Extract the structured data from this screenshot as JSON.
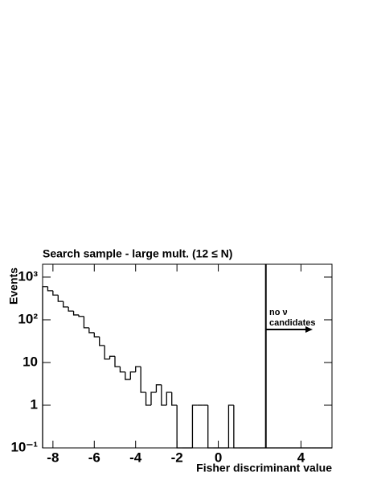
{
  "chart_data": {
    "type": "histogram",
    "title": "Search sample - large mult. (12 ≤ N)",
    "x_label": "Fisher discriminant value",
    "y_label": "Events",
    "bins": [
      -8.5,
      -8.25,
      -8,
      -7.75,
      -7.5,
      -7.25,
      -7,
      -6.75,
      -6.5,
      -6.25,
      -6,
      -5.75,
      -5.5,
      -5.25,
      -5,
      -4.75,
      -4.5,
      -4.25,
      -4,
      -3.75,
      -3.5,
      -3.25,
      -3,
      -2.75,
      -2.5,
      -2.25,
      -2,
      -1.75,
      -1.5,
      -1.25,
      -1,
      -0.75,
      -0.5,
      -0.25,
      0,
      0.25,
      0.5,
      0.75,
      1,
      1.25,
      1.5,
      1.75,
      2,
      2.25,
      2.5,
      2.75,
      3,
      3.25,
      3.5,
      3.75,
      4,
      4.25,
      4.5,
      4.75,
      5,
      5.25,
      5.5
    ],
    "values": [
      600,
      480,
      380,
      270,
      200,
      160,
      130,
      120,
      65,
      50,
      40,
      25,
      12,
      14,
      8,
      6,
      4,
      6,
      8,
      2,
      1,
      2,
      3,
      1,
      2,
      1,
      0,
      0,
      0,
      1,
      1,
      1,
      0,
      0,
      0,
      0,
      1,
      0,
      0,
      0,
      0,
      0,
      0,
      0,
      0,
      0,
      0,
      0,
      0,
      0,
      0,
      0,
      0,
      0,
      0,
      0
    ],
    "color": "#000000",
    "xlim": [
      -8.5,
      5.5
    ],
    "ylim": [
      0.1,
      2000
    ],
    "log_y": true,
    "xticks": [
      -8,
      -6,
      -4,
      -2,
      0,
      4
    ],
    "yticks": [
      {
        "value": 0.1,
        "label": "10⁻¹"
      },
      1,
      10,
      {
        "value": 100,
        "label": "10²"
      },
      {
        "value": 1000,
        "label": "10³"
      }
    ],
    "cut": 2.3,
    "annotation": [
      "no ν",
      "candidates"
    ]
  }
}
